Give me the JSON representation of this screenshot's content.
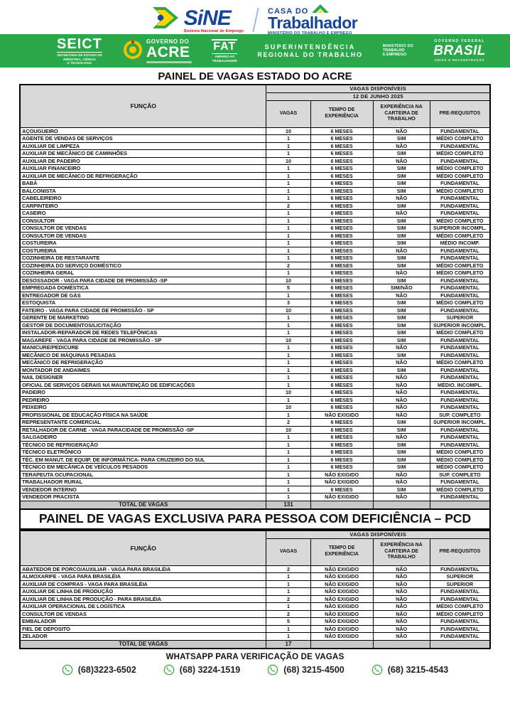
{
  "header": {
    "sine": {
      "name": "SiNE",
      "subtitle": "Sistema Nacional de Emprego"
    },
    "casa": {
      "top": "CASA DO",
      "main": "Trabalhador",
      "subtitle": "MINISTÉRIO DO TRABALHO E EMPREGO"
    },
    "green_bar": {
      "seict": {
        "name": "SEICT",
        "subtitle_l1": "SECRETARIA DE ESTADO DE",
        "subtitle_l2": "INDÚSTRIA, CIÊNCIA",
        "subtitle_l3": "E TECNOLOGIA"
      },
      "governo_acre": {
        "top": "GOVERNO DO",
        "main": "ACRE"
      },
      "fat": {
        "name": "FAT",
        "subtitle_l1": "AMPARO AO",
        "subtitle_l2": "TRABALHADOR"
      },
      "superintendencia": {
        "line1": "SUPERINTENDÊNCIA",
        "line2": "REGIONAL DO TRABALHO"
      },
      "ministerio": {
        "line1": "MINISTÉRIO DO",
        "line2": "TRABALHO",
        "line3": "E EMPREGO"
      },
      "brasil": {
        "top": "GOVERNO FEDERAL",
        "main": "BRASIL",
        "bottom": "UNIÃO E RECONSTRUÇÃO"
      }
    }
  },
  "colors": {
    "accent_green": "#2BA84A",
    "brand_blue": "#16449A",
    "brand_red": "#E3001B",
    "header_gray": "#d9d9d9",
    "total_gray": "#c9c9c9",
    "whatsapp_green": "#3fae49"
  },
  "table1": {
    "title": "PAINEL DE VAGAS ESTADO DO ACRE",
    "header": {
      "available": "VAGAS DISPONÍVEIS",
      "date": "12 DE JUNHO 2025",
      "funcao": "FUNÇÃO",
      "vagas": "VAGAS",
      "tempo": "TEMPO DE EXPERIÊNCIA",
      "carteira": "EXPERIÊNCIA NA CARTEIRA DE TRABALHO",
      "prereq": "PRE-REQUSITOS"
    },
    "rows": [
      [
        "AÇOUGUEIRO",
        "10",
        "6 MESES",
        "NÃO",
        "FUNDAMENTAL"
      ],
      [
        "AGENTE DE VENDAS  DE SERVIÇOS",
        "1",
        "6 MESES",
        "SIM",
        "MÉDIO COMPLETO"
      ],
      [
        "AUXILIAR DE LIMPEZA",
        "1",
        "6 MESES",
        "NÃO",
        "FUNDAMENTAL"
      ],
      [
        "AUXILIAR DE MECÂNICO DE CAMINHÕES",
        "1",
        "6 MESES",
        "SIM",
        "MÉDIO COMPLETO"
      ],
      [
        "AUXILIAR DE PADEIRO",
        "10",
        "6 MESES",
        "NÃO",
        "FUNDAMENTAL"
      ],
      [
        "AUXILIAR FINANCEIRO",
        "1",
        "6 MESES",
        "SIM",
        "MÉDIO COMPLETO"
      ],
      [
        "AUXILIAR DE MECÂNICO DE REFRIGERAÇÃO",
        "1",
        "6 MESES",
        "SIM",
        "MÉDIO COMPLETO"
      ],
      [
        "BABÁ",
        "1",
        "6 MESES",
        "SIM",
        "FUNDAMENTAL"
      ],
      [
        "BALCONISTA",
        "1",
        "6 MESES",
        "SIM",
        "MÉDIO COMPLETO"
      ],
      [
        "CABELEIREIRO",
        "1",
        "6 MESES",
        "NÃO",
        "FUNDAMENTAL"
      ],
      [
        "CARPINTEIRO",
        "2",
        "6 MESES",
        "SIM",
        "FUNDAMENTAL"
      ],
      [
        "CASEIRO",
        "1",
        "6 MESES",
        "NÃO",
        "FUNDAMENTAL"
      ],
      [
        "CONSULTOR",
        "1",
        "6 MESES",
        "SIM",
        "MÉDIO COMPLETO"
      ],
      [
        "CONSULTOR DE VENDAS",
        "1",
        "6 MESES",
        "SIM",
        "SUPERIOR INCOMPL."
      ],
      [
        "CONSULTOR DE VENDAS",
        "1",
        "6 MESES",
        "SIM",
        "MÉDIO COMPLETO"
      ],
      [
        "COSTUREIRA",
        "1",
        "6 MESES",
        "SIM",
        "MÉDIO INCOMP."
      ],
      [
        "COSTUREIRA",
        "1",
        "6 MESES",
        "NÃO",
        "FUNDAMENTAL"
      ],
      [
        "COZINHEIRA DE RESTARANTE",
        "1",
        "6 MESES",
        "SIM",
        "FUNDAMENTAL"
      ],
      [
        "COZINHEIRA DO SERVIÇO DOMÉSTICO",
        "2",
        "6 MESES",
        "SIM",
        "MÉDIO COMPLETO"
      ],
      [
        "COZINHEIRA GERAL",
        "1",
        "6 MESES",
        "NÃO",
        "MÉDIO COMPLETO"
      ],
      [
        "DESOSSADOR  - VAGA PARA CIDADE DE PROMISSÃO -SP",
        "10",
        "6 MESES",
        "SIM",
        "FUNDAMENTAL"
      ],
      [
        "EMPREGADA DOMÉSTICA",
        "5",
        "6 MESES",
        "SIM/NÃO",
        "FUNDAMENTAL"
      ],
      [
        "ENTREGADOR DE GÁS",
        "1",
        "6 MESES",
        "NÃO",
        "FUNDAMENTAL"
      ],
      [
        "ESTOQUISTA",
        "3",
        "6 MESES",
        "SIM",
        "MÉDIO COMPLETO"
      ],
      [
        "FATEIRO - VAGA PARA CIDADE DE PROMISSÃO - SP",
        "10",
        "6 MESES",
        "SIM",
        "FUNDAMENTAL"
      ],
      [
        "GERENTE DE MARKETING",
        "1",
        "6 MESES",
        "SIM",
        "SUPERIOR"
      ],
      [
        "GESTOR DE DOCUMENTOS/LICITAÇÃO",
        "1",
        "6 MESES",
        "SIM",
        "SUPERIOR INCOMPL."
      ],
      [
        "INSTALADOR-REPARADOR DE REDES TELEFÔNICAS",
        "1",
        "6 MESES",
        "SIM",
        "MÉDIO COMPLETO"
      ],
      [
        "MAGAREFE -  VAGA PARA CIDADE DE PROMISSÃO - SP",
        "10",
        "6 MESES",
        "SIM",
        "FUNDAMENTAL"
      ],
      [
        "MANICURE/PEDICURE",
        "1",
        "6 MESES",
        "NÃO",
        "FUNDAMENTAL"
      ],
      [
        "MECÂNICO DE MÁQUINAS PESADAS",
        "1",
        "3 MESES",
        "SIM",
        "FUNDAMENTAL"
      ],
      [
        "MECÂNICO DE REFRIGERAÇÃO",
        "1",
        "6 MESES",
        "NÃO",
        "MÉDIO COMPLETO"
      ],
      [
        "MONTADOR DE ANDAIMES",
        "1",
        "6 MESES",
        "SIM",
        "FUNDAMENTAL"
      ],
      [
        "NAIL DESIGNER",
        "1",
        "6 MESES",
        "NÃO",
        "FUNDAMENTAL"
      ],
      [
        "OFICIAL DE SERVIÇOS  GERAIS NA MAUNTENÇÃO DE EDIFICAÇÕES",
        "1",
        "6 MESES",
        "NÃO",
        "MÉDIO. INCOMPL."
      ],
      [
        "PADEIRO",
        "10",
        "6 MESES",
        "NÃO",
        "FUNDAMENTAL"
      ],
      [
        "PEDREIRO",
        "1",
        "6 MESES",
        "NÃO",
        "FUNDAMENTAL"
      ],
      [
        "PEIXEIRO",
        "10",
        "6 MESES",
        "NÃO",
        "FUNDAMENTAL"
      ],
      [
        "PROFISSIONAL DE EDUCAÇÃO FÍSICA NA SAÚDE",
        "1",
        "NÃO EXIGIDO",
        "NÃO",
        "SUP. COMPLETO"
      ],
      [
        "REPRESENTANTE COMERCIAL",
        "2",
        "6 MESES",
        "SIM",
        "SUPERIOR INCOMPL."
      ],
      [
        "RETALHADOR DE CARNE - VAGA PARACIDADE DE PROMISSÃO -SP",
        "10",
        "6 MESES",
        "SIM",
        "FUNDAMENTAL"
      ],
      [
        "SALGADEIRO",
        "1",
        "6 MESES",
        "NÃO",
        "FUNDAMENTAL"
      ],
      [
        "TÉCNICO DE REFRIGERAÇÃO",
        "1",
        "6 MESES",
        "SIM",
        "FUNDAMENTAL"
      ],
      [
        "TÉCNICO ELETRÔNICO",
        "1",
        "6 MESES",
        "SIM",
        "MÉDIO COMPLETO"
      ],
      [
        "TÉC. EM MANUT. DE EQUIP. DE INFORMÁTICA- PARA CRUZEIRO DO SUL",
        "1",
        "6 MESES",
        "SIM",
        "MÉDIO COMPLETO"
      ],
      [
        "TÉCNICO EM MECÂNICA DE VEÍCULOS PESADOS",
        "1",
        "6 MESES",
        "SIM",
        "MÉDIO COMPLETO"
      ],
      [
        "TERAPEUTA OCUPACIONAL",
        "1",
        "NÃO EXIGIDO",
        "NÃO",
        "SUP. COMPLETO"
      ],
      [
        "TRABALHADOR RURAL",
        "1",
        "NÃO EXIGIDO",
        "NÃO",
        "FUNDAMENTAL"
      ],
      [
        "VENDEDOR INTERNO",
        "1",
        "6 MESES",
        "SIM",
        "MÉDIO COMPLETO"
      ],
      [
        "VENDEDOR PRACISTA",
        "1",
        "NÃO EXIGIDO",
        "NÃO",
        "FUNDAMENTAL"
      ]
    ],
    "total_label": "TOTAL DE VAGAS",
    "total_value": "131"
  },
  "table2": {
    "title": "PAINEL DE VAGAS EXCLUSIVA PARA PESSOA COM DEFICIÊNCIA – PCD",
    "header": {
      "available": "VAGAS DISPONÍVEIS",
      "funcao": "FUNÇÃO",
      "vagas": "VAGAS",
      "tempo": "TEMPO DE EXPERIÊNCIA",
      "carteira": "EXPERIÊNCIA NA CARTEIRA DE TRABALHO",
      "prereq": "PRE-REQUSITOS"
    },
    "rows": [
      [
        "ABATEDOR DE PORCO/AUXILIAR - VAGA PARA BRASILÉIA",
        "2",
        "NÃO EXIGIDO",
        "NÃO",
        "FUNDAMENTAL"
      ],
      [
        "ALMOXARIFE - VAGA PARA BRASILÉIA",
        "1",
        "NÃO EXIGIDO",
        "NÃO",
        "SUPERIOR"
      ],
      [
        "AUXILIAR DE COMPRAS - VAGA PARA BRASILÉIA",
        "1",
        "NÃO EXIGIDO",
        "NÃO",
        "SUPERIOR"
      ],
      [
        "AUXILIAR DE LINHA DE PRODUÇÃO",
        "1",
        "NÃO EXIGIDO",
        "NÃO",
        "FUNDAMENTAL"
      ],
      [
        "AUXILIAR DE LINHA DE PRODUÇÃO -  PARA BRASILÉIA",
        "2",
        "NÃO EXIGIDO",
        "NÃO",
        "FUNDAMENTAL"
      ],
      [
        "AUXILIAR OPERACIONAL DE LOGÍSTICA",
        "1",
        "NÃO EXIGIDO",
        "NÃO",
        "MÉDIO COMPLETO"
      ],
      [
        "CONSULTOR DE VENDAS",
        "2",
        "NÃO EXIGIDO",
        "NÃO",
        "MÉDIO COMPLETO"
      ],
      [
        "EMBALADOR",
        "5",
        "NÃO EXIGIDO",
        "NÃO",
        "FUNDAMENTAL"
      ],
      [
        "FIEL DE DEPOSITO",
        "1",
        "NÃO  EXIGIDO",
        "NÃO",
        "FUNDAMENTAL"
      ],
      [
        "ZELADOR",
        "1",
        "NÃO EXIGIDO",
        "NÃO",
        "FUNDAMENTAL"
      ]
    ],
    "total_label": "TOTAL DE VAGAS",
    "total_value": "17"
  },
  "footer": {
    "title": "WHATSAPP PARA VERIFICAÇÃO DE VAGAS",
    "phones": [
      "(68)3223-6502",
      "(68) 3224-1519",
      "(68) 3215-4500",
      "(68) 3215-4543"
    ]
  }
}
